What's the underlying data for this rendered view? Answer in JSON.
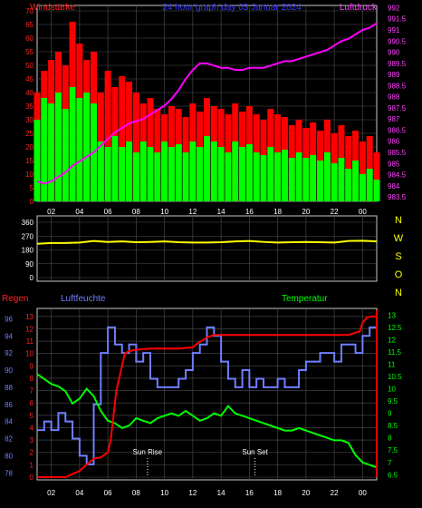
{
  "header": {
    "left_label": "Windstärke",
    "title": "24 hour graph day  03 Januar 2024",
    "right_label": "Luftdruck"
  },
  "colors": {
    "background": "#000000",
    "grid": "#505050",
    "frame": "#c8c8c8",
    "wind_max": "#ff0000",
    "wind_avg": "#00ff00",
    "pressure": "#ff00ff",
    "wind_dir": "#ffff00",
    "humidity": "#6f7fff",
    "rain": "#ff0000",
    "temperature": "#00ff00",
    "axis_left_top": "#ff2020",
    "axis_right_top": "#ff40ff",
    "axis_hum": "#6f7fff",
    "axis_temp": "#00ff00",
    "axis_rain": "#ff2020",
    "text": "#ffffff",
    "title": "#3a3aff"
  },
  "x_ticks": [
    "02",
    "04",
    "06",
    "08",
    "10",
    "12",
    "14",
    "16",
    "18",
    "20",
    "22",
    "00"
  ],
  "chart_data": [
    {
      "type": "line",
      "title": "24 hour graph day  03 Januar 2024",
      "y_label_left": "Windstärke",
      "y_label_right": "Luftdruck",
      "y_left_ticks": [
        "0",
        "5",
        "10",
        "15",
        "20",
        "25",
        "30",
        "35",
        "40",
        "45",
        "50",
        "55",
        "60",
        "65",
        "70"
      ],
      "y_left_range": [
        0,
        72
      ],
      "y_right_ticks": [
        "983.5",
        "984",
        "984.5",
        "985",
        "985.5",
        "986",
        "986.5",
        "987",
        "987.5",
        "988",
        "988.5",
        "989",
        "989.5",
        "990",
        "990.5",
        "991",
        "991.5",
        "992"
      ],
      "y_right_range": [
        983.3,
        992.1
      ],
      "x_range_hours": [
        1,
        25
      ],
      "series": [
        {
          "axis": "left",
          "style": "bars",
          "x": [
            1,
            1.5,
            2,
            2.5,
            3,
            3.5,
            4,
            4.5,
            5,
            5.5,
            6,
            6.5,
            7,
            7.5,
            8,
            8.5,
            9,
            9.5,
            10,
            10.5,
            11,
            11.5,
            12,
            12.5,
            13,
            13.5,
            14,
            14.5,
            15,
            15.5,
            16,
            16.5,
            17,
            17.5,
            18,
            18.5,
            19,
            19.5,
            20,
            20.5,
            21,
            21.5,
            22,
            22.5,
            23,
            23.5,
            24,
            24.5,
            25
          ],
          "values": [
            40,
            48,
            52,
            55,
            50,
            66,
            58,
            52,
            55,
            40,
            48,
            42,
            46,
            44,
            40,
            36,
            38,
            34,
            32,
            35,
            34,
            31,
            36,
            33,
            38,
            35,
            34,
            32,
            36,
            33,
            35,
            32,
            30,
            34,
            32,
            31,
            28,
            30,
            27,
            29,
            26,
            30,
            25,
            28,
            24,
            26,
            22,
            24,
            18
          ]
        },
        {
          "axis": "left",
          "style": "bars",
          "x": [
            1,
            1.5,
            2,
            2.5,
            3,
            3.5,
            4,
            4.5,
            5,
            5.5,
            6,
            6.5,
            7,
            7.5,
            8,
            8.5,
            9,
            9.5,
            10,
            10.5,
            11,
            11.5,
            12,
            12.5,
            13,
            13.5,
            14,
            14.5,
            15,
            15.5,
            16,
            16.5,
            17,
            17.5,
            18,
            18.5,
            19,
            19.5,
            20,
            20.5,
            21,
            21.5,
            22,
            22.5,
            23,
            23.5,
            24,
            24.5,
            25
          ],
          "values": [
            30,
            38,
            36,
            40,
            34,
            42,
            38,
            40,
            36,
            22,
            20,
            24,
            20,
            22,
            18,
            22,
            20,
            18,
            22,
            20,
            21,
            18,
            22,
            20,
            24,
            22,
            20,
            18,
            22,
            20,
            21,
            18,
            17,
            20,
            18,
            19,
            16,
            18,
            16,
            17,
            15,
            18,
            14,
            16,
            12,
            15,
            10,
            12,
            8
          ]
        },
        {
          "axis": "right",
          "style": "line",
          "x": [
            1,
            1.5,
            2,
            2.5,
            3,
            3.5,
            4,
            4.5,
            5,
            5.5,
            6,
            6.5,
            7,
            7.5,
            8,
            8.5,
            9,
            9.5,
            10,
            10.5,
            11,
            11.5,
            12,
            12.5,
            13,
            13.5,
            14,
            14.5,
            15,
            15.5,
            16,
            16.5,
            17,
            17.5,
            18,
            18.5,
            19,
            19.5,
            20,
            20.5,
            21,
            21.5,
            22,
            22.5,
            23,
            23.5,
            24,
            24.5,
            25
          ],
          "values": [
            984.2,
            984.1,
            984.2,
            984.4,
            984.6,
            984.9,
            985.1,
            985.3,
            985.5,
            985.8,
            986.1,
            986.4,
            986.6,
            986.8,
            986.9,
            987.0,
            987.2,
            987.4,
            987.6,
            987.9,
            988.3,
            988.8,
            989.2,
            989.5,
            989.5,
            989.4,
            989.3,
            989.3,
            989.2,
            989.2,
            989.3,
            989.3,
            989.3,
            989.4,
            989.5,
            989.6,
            989.6,
            989.7,
            989.8,
            989.9,
            990.0,
            990.1,
            990.3,
            990.5,
            990.6,
            990.8,
            991.0,
            991.1,
            991.3
          ]
        }
      ]
    },
    {
      "type": "line",
      "y_left_ticks": [
        "0",
        "90",
        "180",
        "270",
        "360"
      ],
      "y_left_range": [
        0,
        360
      ],
      "y_right_ticks": [
        "N",
        "W",
        "S",
        "O",
        "N"
      ],
      "x_range_hours": [
        1,
        25
      ],
      "series": [
        {
          "style": "line",
          "x": [
            1,
            2,
            3,
            4,
            5,
            6,
            7,
            8,
            9,
            10,
            11,
            12,
            13,
            14,
            15,
            16,
            17,
            18,
            19,
            20,
            21,
            22,
            23,
            24,
            25
          ],
          "values": [
            220,
            225,
            225,
            228,
            238,
            232,
            235,
            230,
            232,
            235,
            230,
            228,
            228,
            230,
            235,
            238,
            232,
            228,
            230,
            232,
            230,
            228,
            238,
            240,
            235
          ]
        }
      ]
    },
    {
      "type": "line",
      "y_label_rain": "Regen",
      "y_label_humidity": "Luftfeuchte",
      "y_label_temperature": "Temperatur",
      "y_rain_ticks": [
        "0",
        "1",
        "2",
        "3",
        "4",
        "5",
        "6",
        "7",
        "8",
        "9",
        "10",
        "11",
        "12",
        "13"
      ],
      "y_rain_range": [
        0,
        13.5
      ],
      "y_hum_ticks": [
        "78",
        "80",
        "82",
        "84",
        "86",
        "88",
        "90",
        "92",
        "94",
        "96"
      ],
      "y_hum_range": [
        77.5,
        97
      ],
      "y_temp_ticks": [
        "6.5",
        "7",
        "7.5",
        "8",
        "8.5",
        "9",
        "9.5",
        "10",
        "10.5",
        "11",
        "11.5",
        "12",
        "12.5",
        "13"
      ],
      "y_temp_range": [
        6.4,
        13.2
      ],
      "x_range_hours": [
        1,
        25
      ],
      "annotations": [
        {
          "text": "Sun Rise",
          "hour": 8.8
        },
        {
          "text": "Sun Set",
          "hour": 16.4
        }
      ],
      "series": [
        {
          "name": "Regen",
          "style": "line",
          "x": [
            1,
            2,
            3,
            4,
            5,
            5.5,
            6,
            6.2,
            6.4,
            6.6,
            6.8,
            7,
            7.2,
            7.5,
            8,
            9,
            10,
            11,
            12,
            12.3,
            12.6,
            13,
            13.5,
            14,
            15,
            16,
            17,
            18,
            19,
            20,
            21,
            22,
            23,
            23.8,
            24,
            24.3,
            24.6,
            25
          ],
          "values": [
            0,
            0,
            0,
            0.5,
            1.5,
            1.6,
            2,
            3,
            5,
            7,
            8,
            9,
            10,
            10.2,
            10.3,
            10.4,
            10.4,
            10.4,
            10.5,
            10.8,
            11,
            11.3,
            11.5,
            11.5,
            11.5,
            11.5,
            11.5,
            11.5,
            11.5,
            11.5,
            11.5,
            11.5,
            11.5,
            11.8,
            12.5,
            12.9,
            13,
            13
          ]
        },
        {
          "name": "Luftfeuchte",
          "style": "step",
          "x": [
            1,
            1.5,
            2,
            2.5,
            3,
            3.5,
            4,
            4.5,
            5,
            5.5,
            6,
            6.5,
            7,
            7.5,
            8,
            8.5,
            9,
            9.5,
            10,
            10.5,
            11,
            11.5,
            12,
            12.5,
            13,
            13.5,
            14,
            14.5,
            15,
            15.5,
            16,
            16.5,
            17,
            17.5,
            18,
            18.5,
            19,
            19.5,
            20,
            20.5,
            21,
            21.5,
            22,
            22.5,
            23,
            23.5,
            24,
            24.5,
            25
          ],
          "values": [
            83,
            84,
            83,
            85,
            84,
            82,
            80,
            79,
            86,
            92,
            95,
            93,
            92,
            93,
            91,
            92,
            89,
            88,
            88,
            88,
            89,
            90,
            92,
            93,
            95,
            94,
            91,
            89,
            88,
            90,
            88,
            89,
            88,
            88,
            89,
            88,
            88,
            90,
            91,
            91,
            92,
            92,
            91,
            93,
            93,
            92,
            94,
            95,
            95
          ]
        },
        {
          "name": "Temperatur",
          "style": "line",
          "x": [
            1,
            1.5,
            2,
            2.5,
            3,
            3.5,
            4,
            4.5,
            5,
            5.5,
            6,
            6.5,
            7,
            7.5,
            8,
            8.5,
            9,
            9.5,
            10,
            10.5,
            11,
            11.5,
            12,
            12.5,
            13,
            13.5,
            14,
            14.5,
            15,
            15.5,
            16,
            16.5,
            17,
            17.5,
            18,
            18.5,
            19,
            19.5,
            20,
            20.5,
            21,
            21.5,
            22,
            22.5,
            23,
            23.5,
            24,
            24.5,
            25
          ],
          "values": [
            10.6,
            10.4,
            10.2,
            10.1,
            9.9,
            9.4,
            9.6,
            10.0,
            9.7,
            9.1,
            8.7,
            8.6,
            8.4,
            8.5,
            8.8,
            8.7,
            8.6,
            8.8,
            8.9,
            9.0,
            8.9,
            9.1,
            8.9,
            8.7,
            8.8,
            9.0,
            8.9,
            9.3,
            9.0,
            8.9,
            8.8,
            8.7,
            8.6,
            8.5,
            8.4,
            8.3,
            8.3,
            8.4,
            8.3,
            8.2,
            8.1,
            8.0,
            7.9,
            7.9,
            7.8,
            7.3,
            7.0,
            6.9,
            6.8
          ]
        }
      ]
    }
  ]
}
